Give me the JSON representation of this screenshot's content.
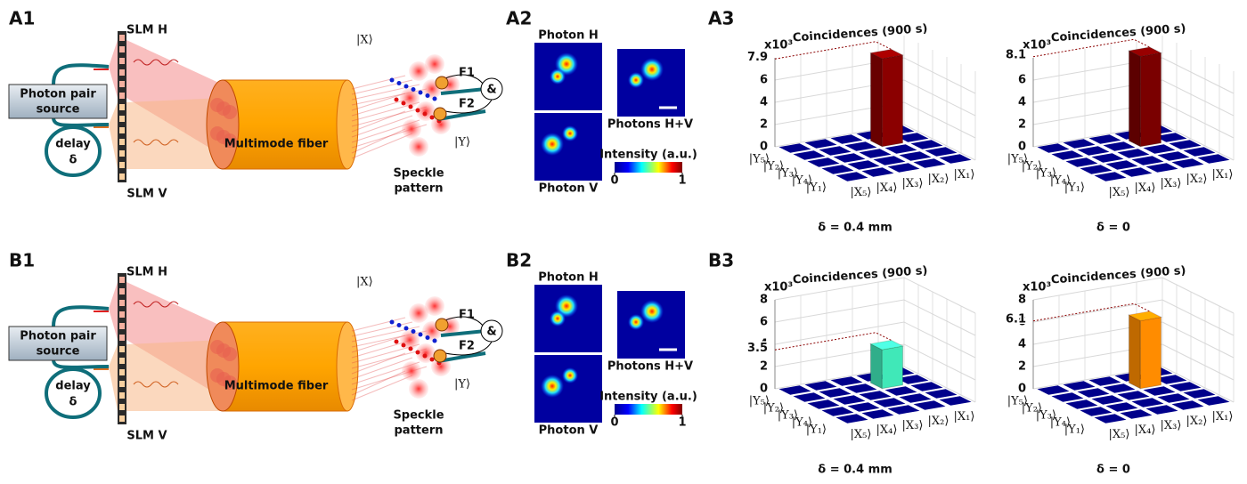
{
  "rows": [
    {
      "labels": {
        "setup": "A1",
        "images": "A2",
        "charts": "A3"
      },
      "setup": {
        "slm_h": "SLM H",
        "slm_v": "SLM V",
        "source": [
          "Photon pair",
          "source"
        ],
        "delay": [
          "delay",
          "δ"
        ],
        "fiber": "Multimode fiber",
        "speckle": [
          "Speckle",
          "pattern"
        ],
        "mode_x": "|X⟩",
        "mode_y": "|Y⟩",
        "filter_1": "F1",
        "filter_2": "F2",
        "coincidence": "&"
      },
      "images": {
        "photon_h": "Photon H",
        "photon_v": "Photon V",
        "combined": "Photons H+V",
        "colorbar": {
          "label": "Intensity (a.u.)",
          "range": [
            0,
            1
          ],
          "ticks": [
            0,
            1
          ]
        }
      }
    },
    {
      "labels": {
        "setup": "B1",
        "images": "B2",
        "charts": "B3"
      },
      "setup": {
        "slm_h": "SLM H",
        "slm_v": "SLM V",
        "source": [
          "Photon pair",
          "source"
        ],
        "delay": [
          "delay",
          "δ"
        ],
        "fiber": "Multimode fiber",
        "speckle": [
          "Speckle",
          "pattern"
        ],
        "mode_x": "|X⟩",
        "mode_y": "|Y⟩",
        "filter_1": "F1",
        "filter_2": "F2",
        "coincidence": "&"
      },
      "images": {
        "photon_h": "Photon H",
        "photon_v": "Photon V",
        "combined": "Photons H+V",
        "colorbar": {
          "label": "Intensity (a.u.)",
          "range": [
            0,
            1
          ],
          "ticks": [
            0,
            1
          ]
        }
      }
    }
  ],
  "chart_data": [
    {
      "type": "bar3d",
      "title": "Coincidences (900 s)",
      "multiplier": "x10³",
      "caption": "δ = 0.4 mm",
      "x_categories": [
        "|X₅⟩",
        "|X₄⟩",
        "|X₃⟩",
        "|X₂⟩",
        "|X₁⟩"
      ],
      "y_categories": [
        "|Y₅⟩",
        "|Y₂⟩",
        "|Y₃⟩",
        "|Y₄⟩",
        "|Y₁⟩"
      ],
      "values": [
        [
          0,
          0,
          0,
          0,
          0
        ],
        [
          0,
          0,
          0,
          7.9,
          0
        ],
        [
          0,
          0,
          0,
          0,
          0
        ],
        [
          0,
          0,
          0,
          0,
          0
        ],
        [
          0,
          0,
          0,
          0,
          0
        ]
      ],
      "color": "#8b0000",
      "tile_color": "#00008b",
      "zlim": [
        0,
        8
      ],
      "zticks": [
        0,
        2,
        4,
        6
      ]
    },
    {
      "type": "bar3d",
      "title": "Coincidences (900 s)",
      "multiplier": "x10³",
      "caption": "δ = 0",
      "x_categories": [
        "|X₅⟩",
        "|X₄⟩",
        "|X₃⟩",
        "|X₂⟩",
        "|X₁⟩"
      ],
      "y_categories": [
        "|Y₅⟩",
        "|Y₂⟩",
        "|Y₃⟩",
        "|Y₄⟩",
        "|Y₁⟩"
      ],
      "values": [
        [
          0,
          0,
          0,
          0,
          0
        ],
        [
          0,
          0,
          0,
          8.1,
          0
        ],
        [
          0,
          0,
          0,
          0,
          0
        ],
        [
          0,
          0,
          0,
          0,
          0
        ],
        [
          0,
          0,
          0,
          0,
          0
        ]
      ],
      "color": "#7a0000",
      "tile_color": "#00008b",
      "zlim": [
        0,
        8
      ],
      "zticks": [
        0,
        2,
        4,
        6
      ]
    },
    {
      "type": "bar3d",
      "title": "Coincidences (900 s)",
      "multiplier": "x10³",
      "caption": "δ = 0.4 mm",
      "x_categories": [
        "|X₅⟩",
        "|X₄⟩",
        "|X₃⟩",
        "|X₂⟩",
        "|X₁⟩"
      ],
      "y_categories": [
        "|Y₅⟩",
        "|Y₂⟩",
        "|Y₃⟩",
        "|Y₄⟩",
        "|Y₁⟩"
      ],
      "values": [
        [
          0,
          0,
          0,
          0,
          0
        ],
        [
          0,
          0,
          0,
          3.5,
          0
        ],
        [
          0,
          0,
          0,
          0,
          0
        ],
        [
          0,
          0,
          0,
          0,
          0
        ],
        [
          0,
          0,
          0,
          0,
          0
        ]
      ],
      "color": "#40e8b8",
      "tile_color": "#00008b",
      "zlim": [
        0,
        8
      ],
      "zticks": [
        0,
        2,
        4,
        6,
        8
      ]
    },
    {
      "type": "bar3d",
      "title": "Coincidences (900 s)",
      "multiplier": "x10³",
      "caption": "δ = 0",
      "x_categories": [
        "|X₅⟩",
        "|X₄⟩",
        "|X₃⟩",
        "|X₂⟩",
        "|X₁⟩"
      ],
      "y_categories": [
        "|Y₅⟩",
        "|Y₂⟩",
        "|Y₃⟩",
        "|Y₄⟩",
        "|Y₁⟩"
      ],
      "values": [
        [
          0,
          0,
          0,
          0,
          0
        ],
        [
          0,
          0,
          0,
          6.1,
          0
        ],
        [
          0,
          0,
          0,
          0,
          0
        ],
        [
          0,
          0,
          0,
          0,
          0
        ],
        [
          0,
          0,
          0,
          0,
          0
        ]
      ],
      "color": "#ff8c00",
      "tile_color": "#00008b",
      "zlim": [
        0,
        8
      ],
      "zticks": [
        0,
        2,
        4,
        6,
        8
      ]
    }
  ]
}
